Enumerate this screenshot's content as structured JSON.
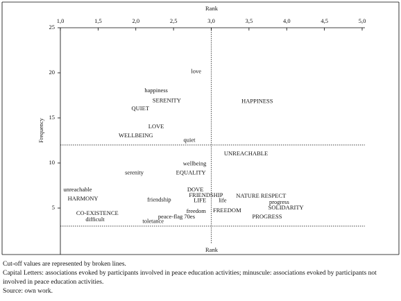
{
  "chart_data": {
    "type": "scatter",
    "x_label": "Rank",
    "x_label_bottom": "Rank",
    "y_label": "Frequency",
    "xlim": [
      1,
      5
    ],
    "ylim": [
      0,
      25
    ],
    "xticks": [
      {
        "value": 1,
        "label": "1,0"
      },
      {
        "value": 1.5,
        "label": "1,5"
      },
      {
        "value": 2,
        "label": "2,0"
      },
      {
        "value": 2.5,
        "label": "2,5"
      },
      {
        "value": 3,
        "label": "3,0"
      },
      {
        "value": 3.5,
        "label": "3,5"
      },
      {
        "value": 4,
        "label": "4,0"
      },
      {
        "value": 4.5,
        "label": "4,5"
      },
      {
        "value": 5,
        "label": "5,0"
      }
    ],
    "yticks": [
      5,
      10,
      15,
      20,
      25
    ],
    "cutoff_x": [
      3
    ],
    "cutoff_y": [
      12,
      3
    ],
    "points": [
      {
        "label": "love",
        "x": 2.8,
        "y": 20.1
      },
      {
        "label": "happiness",
        "x": 2.27,
        "y": 18.0
      },
      {
        "label": "SERENITY",
        "x": 2.41,
        "y": 16.9
      },
      {
        "label": "HAPPINESS",
        "x": 3.61,
        "y": 16.8
      },
      {
        "label": "QUIET",
        "x": 2.06,
        "y": 16.0
      },
      {
        "label": "LOVE",
        "x": 2.27,
        "y": 14.0
      },
      {
        "label": "WELLBEING",
        "x": 2.0,
        "y": 13.0
      },
      {
        "label": "quiet",
        "x": 2.71,
        "y": 12.5
      },
      {
        "label": "UNREACHABLE",
        "x": 3.46,
        "y": 11.0
      },
      {
        "label": "wellbeing",
        "x": 2.78,
        "y": 9.9
      },
      {
        "label": "serenity",
        "x": 1.98,
        "y": 8.9
      },
      {
        "label": "EQUALITY",
        "x": 2.73,
        "y": 8.9
      },
      {
        "label": "unreachable",
        "x": 1.23,
        "y": 7.0
      },
      {
        "label": "DOVE",
        "x": 2.79,
        "y": 7.0
      },
      {
        "label": "FRIENDSHIP",
        "x": 2.93,
        "y": 6.4
      },
      {
        "label": "NATURE RESPECT",
        "x": 3.66,
        "y": 6.3
      },
      {
        "label": "HARMONY",
        "x": 1.3,
        "y": 6.0
      },
      {
        "label": "friendship",
        "x": 2.31,
        "y": 5.9
      },
      {
        "label": "LIFE",
        "x": 2.85,
        "y": 5.8
      },
      {
        "label": "life",
        "x": 3.15,
        "y": 5.8
      },
      {
        "label": "progress",
        "x": 3.9,
        "y": 5.6
      },
      {
        "label": "SOLIDARITY",
        "x": 3.99,
        "y": 5.0
      },
      {
        "label": "freedom",
        "x": 2.8,
        "y": 4.6
      },
      {
        "label": "FREEDOM",
        "x": 3.21,
        "y": 4.7
      },
      {
        "label": "CO-EXISTENCE",
        "x": 1.49,
        "y": 4.4
      },
      {
        "label": "difficult",
        "x": 1.46,
        "y": 3.7
      },
      {
        "label": "peace-flag 70es",
        "x": 2.54,
        "y": 4.0
      },
      {
        "label": "PROGRESS",
        "x": 3.74,
        "y": 4.0
      },
      {
        "label": "toletance",
        "x": 2.23,
        "y": 3.5
      }
    ]
  },
  "notes": [
    "Cut-off values are represented by broken lines.",
    "Capital Letters: associations evoked by participants involved in peace education activities; minuscule: associations evoked by participants not involved in peace education activities.",
    "Source: own work."
  ]
}
